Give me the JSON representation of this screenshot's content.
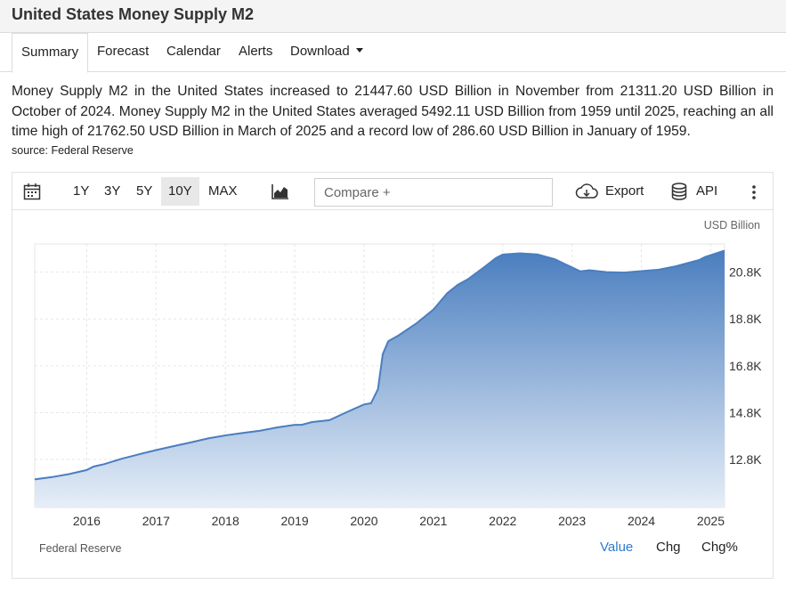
{
  "page": {
    "title": "United States Money Supply M2"
  },
  "tabs": [
    {
      "label": "Summary"
    },
    {
      "label": "Forecast"
    },
    {
      "label": "Calendar"
    },
    {
      "label": "Alerts"
    },
    {
      "label": "Download"
    }
  ],
  "summary": {
    "text": "Money Supply M2 in the United States increased to 21447.60 USD Billion in November from 21311.20 USD Billion in October of 2024. Money Supply M2 in the United States averaged 5492.11 USD Billion from 1959 until 2025, reaching an all time high of 21762.50 USD Billion in March of 2025 and a record low of 286.60 USD Billion in January of 1959.",
    "source": "source: Federal Reserve"
  },
  "toolbar": {
    "calendar_icon": "calendar-icon",
    "ranges": [
      "1Y",
      "3Y",
      "5Y",
      "10Y",
      "MAX"
    ],
    "active_range": "10Y",
    "chart_type_icon": "area-chart-icon",
    "compare_placeholder": "Compare +",
    "export_label": "Export",
    "export_icon": "cloud-download-icon",
    "api_label": "API",
    "api_icon": "database-icon",
    "more_icon": "more-vertical-icon"
  },
  "footer": {
    "source": "Federal Reserve",
    "modes": [
      "Value",
      "Chg",
      "Chg%"
    ],
    "active_mode": "Value",
    "active_color": "#2e7bcf"
  },
  "chart_data": {
    "type": "area",
    "unit": "USD Billion",
    "color_line": "#4a7ebf",
    "color_fill_top": "#4a7ebf",
    "color_fill_bottom": "#e6eef8",
    "y_ticks": [
      12800,
      14800,
      16800,
      18800,
      20800
    ],
    "y_tick_labels": [
      "12.8K",
      "14.8K",
      "16.8K",
      "18.8K",
      "20.8K"
    ],
    "x_ticks": [
      2016,
      2017,
      2018,
      2019,
      2020,
      2021,
      2022,
      2023,
      2024,
      2025
    ],
    "xlim": [
      2015.25,
      2025.2
    ],
    "ylim": [
      10750,
      22000
    ],
    "grid": true,
    "points": [
      [
        2015.25,
        11950
      ],
      [
        2015.5,
        12050
      ],
      [
        2015.75,
        12180
      ],
      [
        2016.0,
        12350
      ],
      [
        2016.1,
        12500
      ],
      [
        2016.25,
        12600
      ],
      [
        2016.5,
        12830
      ],
      [
        2016.75,
        13020
      ],
      [
        2017.0,
        13200
      ],
      [
        2017.25,
        13370
      ],
      [
        2017.5,
        13530
      ],
      [
        2017.75,
        13700
      ],
      [
        2018.0,
        13830
      ],
      [
        2018.25,
        13930
      ],
      [
        2018.5,
        14030
      ],
      [
        2018.75,
        14170
      ],
      [
        2019.0,
        14280
      ],
      [
        2019.1,
        14280
      ],
      [
        2019.25,
        14400
      ],
      [
        2019.5,
        14480
      ],
      [
        2019.75,
        14820
      ],
      [
        2020.0,
        15150
      ],
      [
        2020.1,
        15200
      ],
      [
        2020.2,
        15800
      ],
      [
        2020.27,
        17300
      ],
      [
        2020.35,
        17850
      ],
      [
        2020.5,
        18100
      ],
      [
        2020.75,
        18600
      ],
      [
        2021.0,
        19200
      ],
      [
        2021.2,
        19900
      ],
      [
        2021.35,
        20250
      ],
      [
        2021.5,
        20500
      ],
      [
        2021.75,
        21050
      ],
      [
        2021.9,
        21400
      ],
      [
        2022.0,
        21550
      ],
      [
        2022.25,
        21600
      ],
      [
        2022.5,
        21550
      ],
      [
        2022.75,
        21350
      ],
      [
        2023.0,
        21000
      ],
      [
        2023.12,
        20830
      ],
      [
        2023.25,
        20880
      ],
      [
        2023.5,
        20800
      ],
      [
        2023.75,
        20780
      ],
      [
        2024.0,
        20840
      ],
      [
        2024.25,
        20900
      ],
      [
        2024.5,
        21050
      ],
      [
        2024.75,
        21250
      ],
      [
        2024.83,
        21311.2
      ],
      [
        2024.92,
        21447.6
      ],
      [
        2025.2,
        21720
      ]
    ]
  }
}
